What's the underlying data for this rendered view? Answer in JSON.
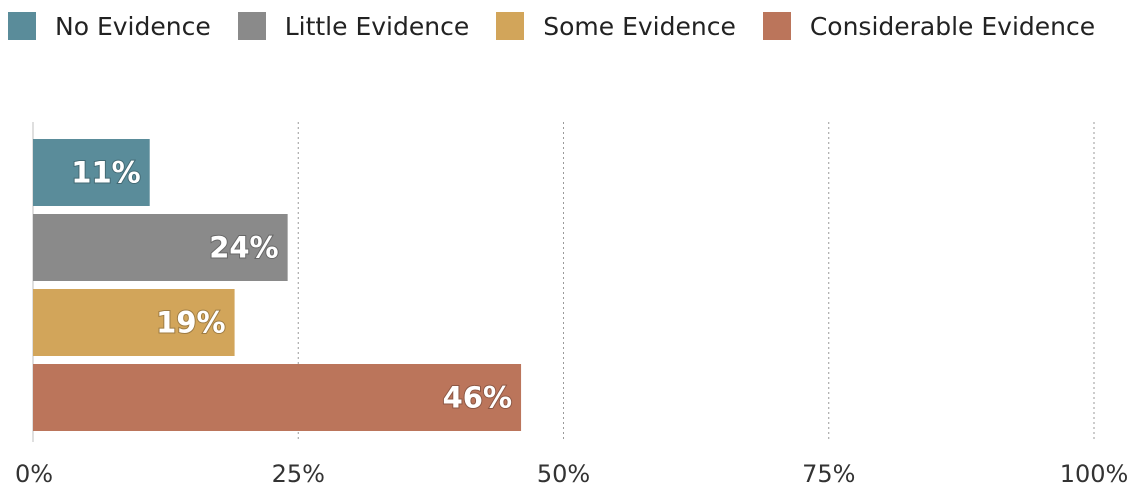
{
  "chart_data": {
    "type": "bar",
    "orientation": "horizontal",
    "title": "",
    "xlabel": "",
    "ylabel": "",
    "xlim": [
      0,
      100
    ],
    "x_ticks": [
      0,
      25,
      50,
      75,
      100
    ],
    "x_tick_labels": [
      "0%",
      "25%",
      "50%",
      "75%",
      "100%"
    ],
    "grid": "vertical dotted",
    "legend": "top-left",
    "categories": [
      "No Evidence",
      "Little Evidence",
      "Some Evidence",
      "Considerable Evidence"
    ],
    "values": [
      11,
      24,
      19,
      46
    ],
    "data_labels": [
      "11%",
      "24%",
      "19%",
      "46%"
    ],
    "colors": [
      "#5a8c9a",
      "#8a8a8a",
      "#d2a55a",
      "#bb755b"
    ]
  }
}
